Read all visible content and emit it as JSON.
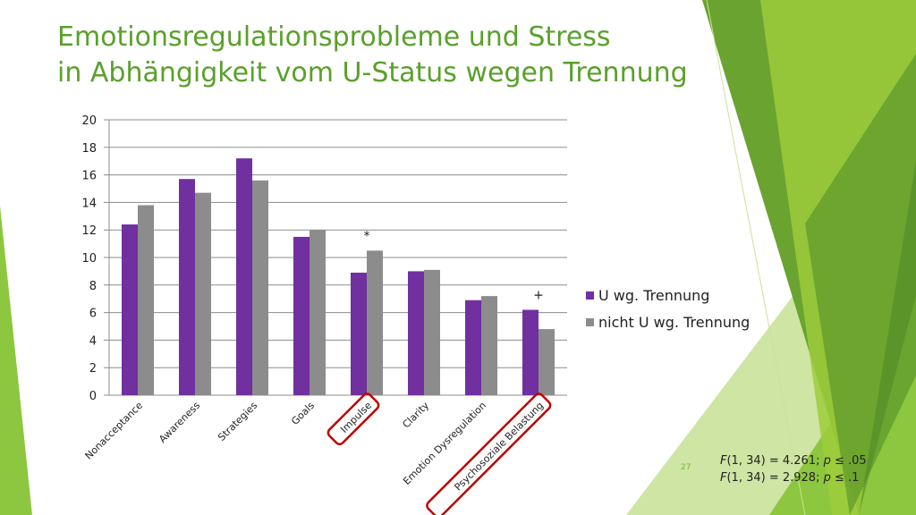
{
  "slide": {
    "title_line1": "Emotionsregulationsprobleme und Stress",
    "title_line2": "in Abhängigkeit vom U-Status wegen Trennung",
    "slide_number": "27",
    "stats": [
      {
        "prefix": "F",
        "text": "(1, 34) = 4.261; ",
        "p": "p",
        "rest": " ≤ .05"
      },
      {
        "prefix": "F",
        "text": "(1, 34) = 2.928; ",
        "p": "p",
        "rest": " ≤ .1"
      }
    ],
    "accent_color": "#5aa02c"
  },
  "chart_data": {
    "type": "bar",
    "categories": [
      "Nonacceptance",
      "Awareness",
      "Strategies",
      "Goals",
      "Impulse",
      "Clarity",
      "Emotion Dysregulation",
      "Psychosoziale Belastung"
    ],
    "series": [
      {
        "name": "U wg. Trennung",
        "color": "#7030a0",
        "values": [
          12.4,
          15.7,
          17.2,
          11.5,
          8.9,
          9.0,
          6.9,
          6.2
        ]
      },
      {
        "name": "nicht U wg. Trennung",
        "color": "#8c8c8c",
        "values": [
          13.8,
          14.7,
          15.6,
          12.0,
          10.5,
          9.1,
          7.2,
          4.8
        ]
      }
    ],
    "yticks": [
      "0",
      "2",
      "4",
      "6",
      "8",
      "10",
      "12",
      "14",
      "16",
      "18",
      "20"
    ],
    "ylim": [
      0,
      20
    ],
    "grid": true,
    "legend_position": "right",
    "annotations": [
      {
        "category": "Impulse",
        "text": "*"
      },
      {
        "category": "Psychosoziale Belastung",
        "text": "+"
      }
    ],
    "highlighted_categories": [
      "Impulse",
      "Psychosoziale Belastung"
    ],
    "highlight_color": "#c00000"
  }
}
